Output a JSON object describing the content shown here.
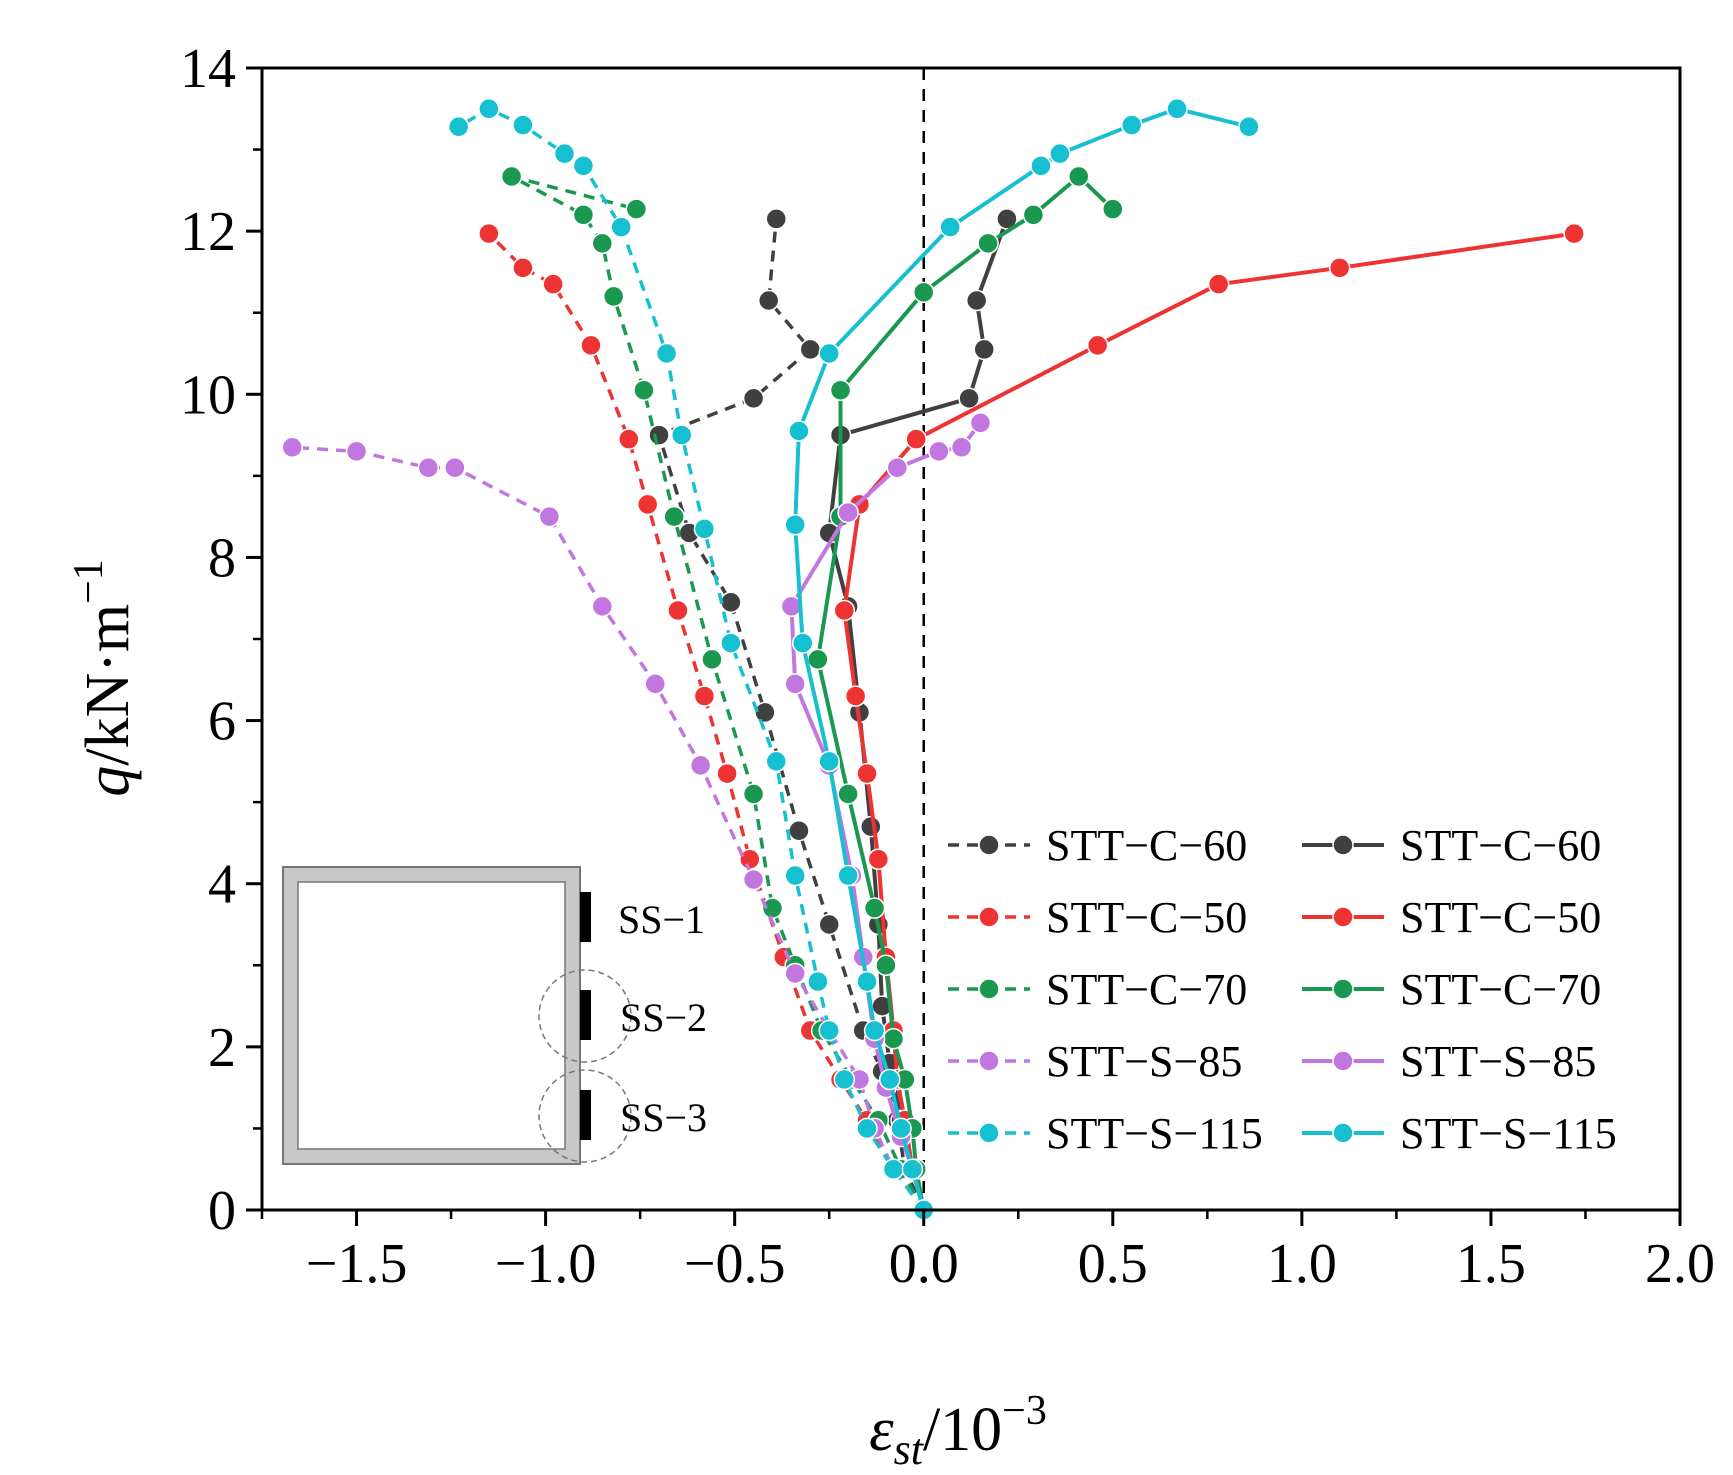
{
  "chart_data": {
    "type": "line",
    "title": "",
    "xlabel": {
      "base": "ε",
      "sub": "st",
      "tail": "/10",
      "sup": "−3"
    },
    "ylabel": {
      "main": "q",
      "unit": "/kN·m",
      "sup": "−1"
    },
    "xlim": [
      -1.75,
      2.0
    ],
    "ylim": [
      0,
      14
    ],
    "xticks": [
      -1.5,
      -1.0,
      -0.5,
      0.0,
      0.5,
      1.0,
      1.5,
      2.0
    ],
    "xtick_labels": [
      "−1.5",
      "−1.0",
      "−0.5",
      "0.0",
      "0.5",
      "1.0",
      "1.5",
      "2.0"
    ],
    "yticks": [
      0,
      2,
      4,
      6,
      8,
      10,
      12,
      14
    ],
    "ytick_labels": [
      "0",
      "2",
      "4",
      "6",
      "8",
      "10",
      "12",
      "14"
    ],
    "reference_line_x": 0,
    "legend_position": "bottom-right",
    "series": [
      {
        "name": "STT−C−60",
        "style": "dashed",
        "color": "#404040",
        "points": [
          [
            0,
            0
          ],
          [
            -0.05,
            0.5
          ],
          [
            -0.07,
            1.1
          ],
          [
            -0.11,
            1.7
          ],
          [
            -0.16,
            2.2
          ],
          [
            -0.25,
            3.5
          ],
          [
            -0.33,
            4.65
          ],
          [
            -0.42,
            6.1
          ],
          [
            -0.51,
            7.45
          ],
          [
            -0.62,
            8.3
          ],
          [
            -0.7,
            9.5
          ],
          [
            -0.45,
            9.95
          ],
          [
            -0.3,
            10.55
          ],
          [
            -0.41,
            11.15
          ],
          [
            -0.39,
            12.15
          ]
        ]
      },
      {
        "name": "STT−C−60",
        "style": "solid",
        "color": "#404040",
        "points": [
          [
            0,
            0
          ],
          [
            -0.03,
            0.5
          ],
          [
            -0.06,
            1.1
          ],
          [
            -0.09,
            1.8
          ],
          [
            -0.11,
            2.5
          ],
          [
            -0.12,
            3.5
          ],
          [
            -0.14,
            4.7
          ],
          [
            -0.17,
            6.1
          ],
          [
            -0.2,
            7.4
          ],
          [
            -0.25,
            8.3
          ],
          [
            -0.22,
            9.5
          ],
          [
            0.12,
            9.95
          ],
          [
            0.16,
            10.55
          ],
          [
            0.14,
            11.15
          ],
          [
            0.22,
            12.15
          ]
        ]
      },
      {
        "name": "STT−C−50",
        "style": "dashed",
        "color": "#ee3333",
        "points": [
          [
            0,
            0
          ],
          [
            -0.08,
            0.5
          ],
          [
            -0.15,
            1.1
          ],
          [
            -0.22,
            1.6
          ],
          [
            -0.3,
            2.2
          ],
          [
            -0.37,
            3.1
          ],
          [
            -0.46,
            4.3
          ],
          [
            -0.52,
            5.35
          ],
          [
            -0.58,
            6.3
          ],
          [
            -0.65,
            7.35
          ],
          [
            -0.73,
            8.65
          ],
          [
            -0.78,
            9.45
          ],
          [
            -0.88,
            10.6
          ],
          [
            -0.98,
            11.35
          ],
          [
            -1.06,
            11.55
          ],
          [
            -1.15,
            11.97
          ]
        ]
      },
      {
        "name": "STT−C−50",
        "style": "solid",
        "color": "#ee3333",
        "points": [
          [
            0,
            0
          ],
          [
            -0.03,
            0.5
          ],
          [
            -0.05,
            1.1
          ],
          [
            -0.07,
            1.6
          ],
          [
            -0.08,
            2.2
          ],
          [
            -0.1,
            3.1
          ],
          [
            -0.12,
            4.3
          ],
          [
            -0.15,
            5.35
          ],
          [
            -0.18,
            6.3
          ],
          [
            -0.21,
            7.35
          ],
          [
            -0.17,
            8.65
          ],
          [
            -0.02,
            9.45
          ],
          [
            0.46,
            10.6
          ],
          [
            0.78,
            11.35
          ],
          [
            1.1,
            11.55
          ],
          [
            1.72,
            11.97
          ]
        ]
      },
      {
        "name": "STT−C−70",
        "style": "dashed",
        "color": "#1a9850",
        "points": [
          [
            0,
            0
          ],
          [
            -0.06,
            0.5
          ],
          [
            -0.12,
            1.1
          ],
          [
            -0.19,
            1.6
          ],
          [
            -0.27,
            2.2
          ],
          [
            -0.34,
            3.0
          ],
          [
            -0.4,
            3.7
          ],
          [
            -0.45,
            5.1
          ],
          [
            -0.56,
            6.75
          ],
          [
            -0.66,
            8.5
          ],
          [
            -0.74,
            10.05
          ],
          [
            -0.82,
            11.2
          ],
          [
            -0.85,
            11.85
          ],
          [
            -0.9,
            12.2
          ],
          [
            -1.09,
            12.67
          ],
          [
            -0.76,
            12.27
          ]
        ]
      },
      {
        "name": "STT−C−70",
        "style": "solid",
        "color": "#1a9850",
        "points": [
          [
            0,
            0
          ],
          [
            -0.02,
            0.5
          ],
          [
            -0.03,
            1.0
          ],
          [
            -0.05,
            1.6
          ],
          [
            -0.08,
            2.1
          ],
          [
            -0.1,
            3.0
          ],
          [
            -0.13,
            3.7
          ],
          [
            -0.2,
            5.1
          ],
          [
            -0.28,
            6.75
          ],
          [
            -0.22,
            8.5
          ],
          [
            -0.22,
            10.05
          ],
          [
            0.0,
            11.25
          ],
          [
            0.17,
            11.85
          ],
          [
            0.29,
            12.2
          ],
          [
            0.41,
            12.67
          ],
          [
            0.5,
            12.27
          ]
        ]
      },
      {
        "name": "STT−S−85",
        "style": "dashed",
        "color": "#c277e0",
        "points": [
          [
            0,
            0
          ],
          [
            -0.08,
            0.5
          ],
          [
            -0.13,
            1.0
          ],
          [
            -0.17,
            1.6
          ],
          [
            -0.25,
            2.2
          ],
          [
            -0.34,
            2.9
          ],
          [
            -0.45,
            4.05
          ],
          [
            -0.59,
            5.45
          ],
          [
            -0.71,
            6.45
          ],
          [
            -0.85,
            7.4
          ],
          [
            -0.99,
            8.5
          ],
          [
            -1.24,
            9.1
          ],
          [
            -1.31,
            9.1
          ],
          [
            -1.5,
            9.3
          ],
          [
            -1.67,
            9.35
          ]
        ]
      },
      {
        "name": "STT−S−85",
        "style": "solid",
        "color": "#c277e0",
        "points": [
          [
            0,
            0
          ],
          [
            -0.03,
            0.5
          ],
          [
            -0.06,
            0.9
          ],
          [
            -0.1,
            1.5
          ],
          [
            -0.13,
            2.1
          ],
          [
            -0.16,
            3.1
          ],
          [
            -0.19,
            4.1
          ],
          [
            -0.25,
            5.45
          ],
          [
            -0.34,
            6.45
          ],
          [
            -0.35,
            7.4
          ],
          [
            -0.2,
            8.55
          ],
          [
            -0.07,
            9.1
          ],
          [
            0.04,
            9.3
          ],
          [
            0.1,
            9.35
          ],
          [
            0.15,
            9.65
          ]
        ]
      },
      {
        "name": "STT−S−115",
        "style": "dashed",
        "color": "#17c0d0",
        "points": [
          [
            0,
            0
          ],
          [
            -0.08,
            0.5
          ],
          [
            -0.15,
            1.0
          ],
          [
            -0.21,
            1.6
          ],
          [
            -0.25,
            2.2
          ],
          [
            -0.28,
            2.8
          ],
          [
            -0.34,
            4.1
          ],
          [
            -0.39,
            5.5
          ],
          [
            -0.51,
            6.95
          ],
          [
            -0.58,
            8.35
          ],
          [
            -0.64,
            9.5
          ],
          [
            -0.68,
            10.5
          ],
          [
            -0.8,
            12.05
          ],
          [
            -0.9,
            12.8
          ],
          [
            -0.95,
            12.95
          ],
          [
            -1.06,
            13.3
          ],
          [
            -1.15,
            13.5
          ],
          [
            -1.23,
            13.28
          ]
        ]
      },
      {
        "name": "STT−S−115",
        "style": "solid",
        "color": "#17c0d0",
        "points": [
          [
            0,
            0
          ],
          [
            -0.03,
            0.5
          ],
          [
            -0.06,
            1.0
          ],
          [
            -0.09,
            1.6
          ],
          [
            -0.13,
            2.2
          ],
          [
            -0.15,
            2.8
          ],
          [
            -0.2,
            4.1
          ],
          [
            -0.25,
            5.5
          ],
          [
            -0.32,
            6.95
          ],
          [
            -0.34,
            8.4
          ],
          [
            -0.33,
            9.55
          ],
          [
            -0.25,
            10.5
          ],
          [
            0.07,
            12.05
          ],
          [
            0.31,
            12.8
          ],
          [
            0.36,
            12.95
          ],
          [
            0.55,
            13.3
          ],
          [
            0.67,
            13.5
          ],
          [
            0.86,
            13.28
          ]
        ]
      }
    ],
    "inset": {
      "labels": [
        "SS−1",
        "SS−2",
        "SS−3"
      ]
    }
  }
}
